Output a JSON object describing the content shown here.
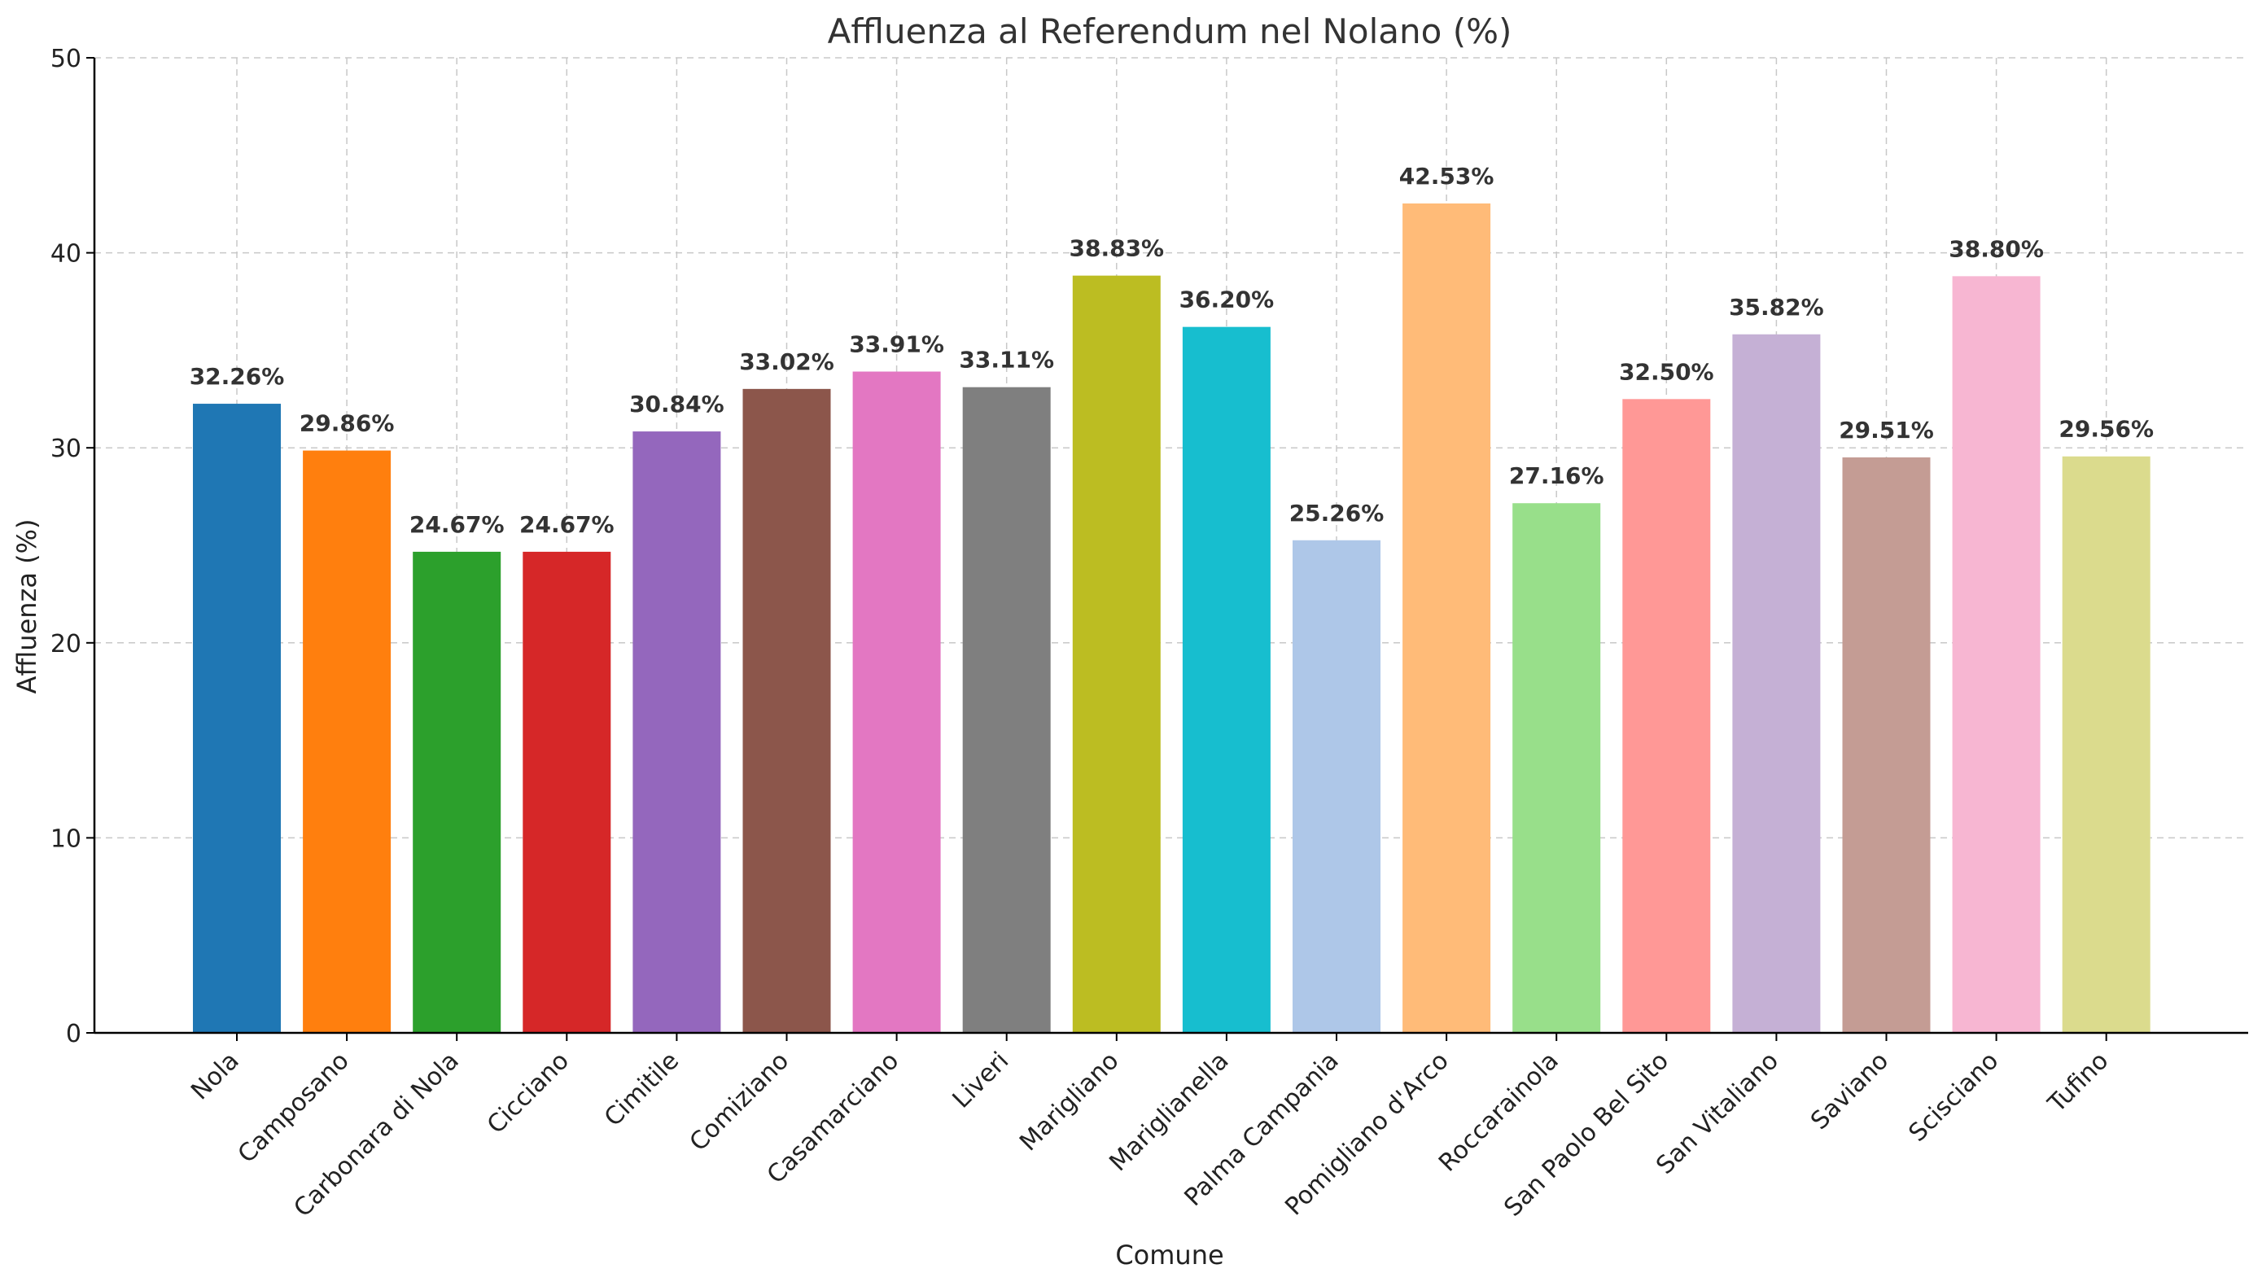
{
  "chart_data": {
    "type": "bar",
    "title": "Affluenza al Referendum nel Nolano (%)",
    "xlabel": "Comune",
    "ylabel": "Affluenza (%)",
    "ylim": [
      0,
      50
    ],
    "yticks": [
      0,
      10,
      20,
      30,
      40,
      50
    ],
    "grid": true,
    "categories": [
      "Nola",
      "Camposano",
      "Carbonara di Nola",
      "Cicciano",
      "Cimitile",
      "Comiziano",
      "Casamarciano",
      "Liveri",
      "Marigliano",
      "Mariglianella",
      "Palma Campania",
      "Pomigliano d'Arco",
      "Roccarainola",
      "San Paolo Bel Sito",
      "San Vitaliano",
      "Saviano",
      "Scisciano",
      "Tufino"
    ],
    "values": [
      32.26,
      29.86,
      24.67,
      24.67,
      30.84,
      33.02,
      33.91,
      33.11,
      38.83,
      36.2,
      25.26,
      42.53,
      27.16,
      32.5,
      35.82,
      29.51,
      38.8,
      29.56
    ],
    "value_labels": [
      "32.26%",
      "29.86%",
      "24.67%",
      "24.67%",
      "30.84%",
      "33.02%",
      "33.91%",
      "33.11%",
      "38.83%",
      "36.20%",
      "25.26%",
      "42.53%",
      "27.16%",
      "32.50%",
      "35.82%",
      "29.51%",
      "38.80%",
      "29.56%"
    ],
    "colors": [
      "#1f77b4",
      "#ff7f0e",
      "#2ca02c",
      "#d62728",
      "#9467bd",
      "#8c564b",
      "#e377c2",
      "#7f7f7f",
      "#bcbd22",
      "#17becf",
      "#aec7e8",
      "#ffbb78",
      "#98df8a",
      "#ff9896",
      "#c5b0d5",
      "#c49c94",
      "#f7b6d2",
      "#dbdb8d"
    ]
  }
}
